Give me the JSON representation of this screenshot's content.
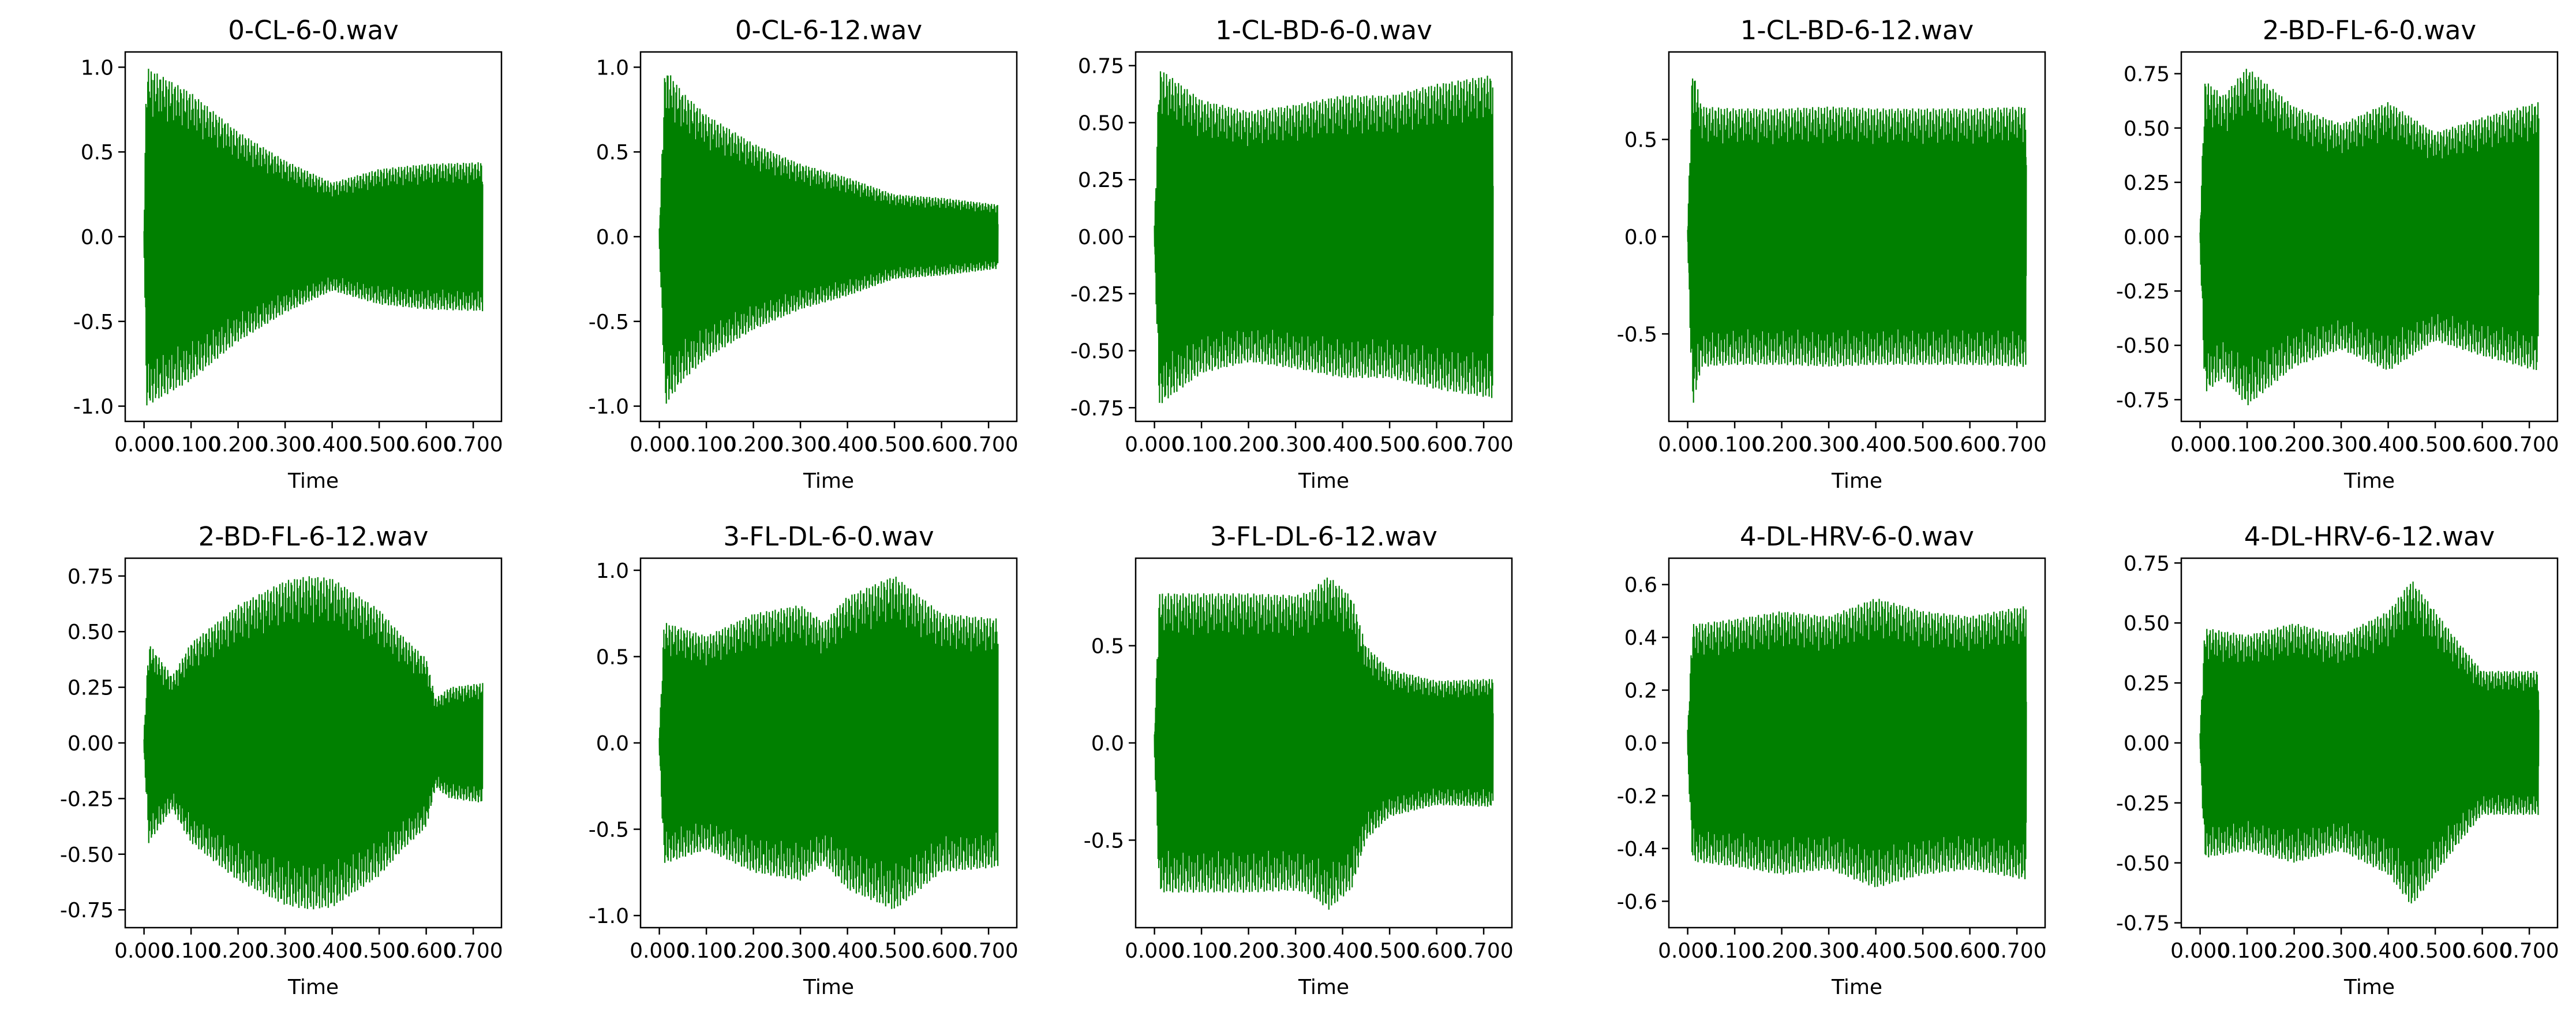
{
  "figure": {
    "colors": {
      "waveform": "#008000",
      "axes": "#000000",
      "background": "#ffffff"
    }
  },
  "chart_data": [
    {
      "type": "line",
      "title": "0-CL-6-0.wav",
      "xlabel": "Time",
      "ylabel": "",
      "xlim": [
        -0.04,
        0.76
      ],
      "ylim": [
        -1.09,
        1.09
      ],
      "xticks": [
        "0.000",
        "0.100",
        "0.200",
        "0.300",
        "0.400",
        "0.500",
        "0.600",
        "0.700"
      ],
      "yticks": [
        "-1.0",
        "-0.5",
        "0.0",
        "0.5",
        "1.0"
      ],
      "grid": false,
      "series": [
        {
          "envelope_t": [
            0.0,
            0.005,
            0.1,
            0.2,
            0.3,
            0.4,
            0.5,
            0.6,
            0.72
          ],
          "envelope_a": [
            0.05,
            1.0,
            0.85,
            0.62,
            0.45,
            0.32,
            0.4,
            0.43,
            0.44
          ]
        }
      ]
    },
    {
      "type": "line",
      "title": "0-CL-6-12.wav",
      "xlabel": "Time",
      "ylabel": "",
      "xlim": [
        -0.04,
        0.76
      ],
      "ylim": [
        -1.09,
        1.09
      ],
      "xticks": [
        "0.000",
        "0.100",
        "0.200",
        "0.300",
        "0.400",
        "0.500",
        "0.600",
        "0.700"
      ],
      "yticks": [
        "-1.0",
        "-0.5",
        "0.0",
        "0.5",
        "1.0"
      ],
      "grid": false,
      "series": [
        {
          "envelope_t": [
            0.0,
            0.012,
            0.05,
            0.1,
            0.2,
            0.3,
            0.4,
            0.5,
            0.6,
            0.72
          ],
          "envelope_a": [
            0.05,
            1.0,
            0.85,
            0.72,
            0.55,
            0.43,
            0.35,
            0.25,
            0.23,
            0.19
          ]
        }
      ]
    },
    {
      "type": "line",
      "title": "1-CL-BD-6-0.wav",
      "xlabel": "Time",
      "ylabel": "",
      "xlim": [
        -0.04,
        0.76
      ],
      "ylim": [
        -0.81,
        0.81
      ],
      "xticks": [
        "0.000",
        "0.100",
        "0.200",
        "0.300",
        "0.400",
        "0.500",
        "0.600",
        "0.700"
      ],
      "yticks": [
        "-0.75",
        "-0.50",
        "-0.25",
        "0.00",
        "0.25",
        "0.50",
        "0.75"
      ],
      "grid": false,
      "series": [
        {
          "envelope_t": [
            0.0,
            0.01,
            0.1,
            0.2,
            0.3,
            0.4,
            0.5,
            0.6,
            0.72
          ],
          "envelope_a": [
            0.05,
            0.74,
            0.6,
            0.55,
            0.58,
            0.62,
            0.62,
            0.67,
            0.71
          ]
        }
      ]
    },
    {
      "type": "line",
      "title": "1-CL-BD-6-12.wav",
      "xlabel": "Time",
      "ylabel": "",
      "xlim": [
        -0.04,
        0.76
      ],
      "ylim": [
        -0.95,
        0.95
      ],
      "xticks": [
        "0.000",
        "0.100",
        "0.200",
        "0.300",
        "0.400",
        "0.500",
        "0.600",
        "0.700"
      ],
      "yticks": [
        "-0.5",
        "0.0",
        "0.5"
      ],
      "grid": false,
      "series": [
        {
          "envelope_t": [
            0.0,
            0.01,
            0.03,
            0.1,
            0.2,
            0.3,
            0.4,
            0.5,
            0.6,
            0.72
          ],
          "envelope_a": [
            0.05,
            0.88,
            0.67,
            0.66,
            0.66,
            0.67,
            0.66,
            0.66,
            0.66,
            0.67
          ]
        }
      ]
    },
    {
      "type": "line",
      "title": "2-BD-FL-6-0.wav",
      "xlabel": "Time",
      "ylabel": "",
      "xlim": [
        -0.04,
        0.76
      ],
      "ylim": [
        -0.85,
        0.85
      ],
      "xticks": [
        "0.000",
        "0.100",
        "0.200",
        "0.300",
        "0.400",
        "0.500",
        "0.600",
        "0.700"
      ],
      "yticks": [
        "-0.75",
        "-0.50",
        "-0.25",
        "0.00",
        "0.25",
        "0.50",
        "0.75"
      ],
      "grid": false,
      "series": [
        {
          "envelope_t": [
            0.0,
            0.01,
            0.05,
            0.1,
            0.2,
            0.3,
            0.4,
            0.5,
            0.6,
            0.72
          ],
          "envelope_a": [
            0.05,
            0.72,
            0.65,
            0.78,
            0.6,
            0.52,
            0.62,
            0.48,
            0.55,
            0.62
          ]
        }
      ]
    },
    {
      "type": "line",
      "title": "2-BD-FL-6-12.wav",
      "xlabel": "Time",
      "ylabel": "",
      "xlim": [
        -0.04,
        0.76
      ],
      "ylim": [
        -0.83,
        0.83
      ],
      "xticks": [
        "0.000",
        "0.100",
        "0.200",
        "0.300",
        "0.400",
        "0.500",
        "0.600",
        "0.700"
      ],
      "yticks": [
        "-0.75",
        "-0.50",
        "-0.25",
        "0.00",
        "0.25",
        "0.50",
        "0.75"
      ],
      "grid": false,
      "series": [
        {
          "envelope_t": [
            0.0,
            0.01,
            0.06,
            0.1,
            0.2,
            0.3,
            0.35,
            0.4,
            0.5,
            0.55,
            0.6,
            0.62,
            0.65,
            0.72
          ],
          "envelope_a": [
            0.05,
            0.45,
            0.3,
            0.45,
            0.62,
            0.73,
            0.75,
            0.74,
            0.6,
            0.48,
            0.38,
            0.2,
            0.25,
            0.27
          ]
        }
      ]
    },
    {
      "type": "line",
      "title": "3-FL-DL-6-0.wav",
      "xlabel": "Time",
      "ylabel": "",
      "xlim": [
        -0.04,
        0.76
      ],
      "ylim": [
        -1.07,
        1.07
      ],
      "xticks": [
        "0.000",
        "0.100",
        "0.200",
        "0.300",
        "0.400",
        "0.500",
        "0.600",
        "0.700"
      ],
      "yticks": [
        "-1.0",
        "-0.5",
        "0.0",
        "0.5",
        "1.0"
      ],
      "grid": false,
      "series": [
        {
          "envelope_t": [
            0.0,
            0.01,
            0.1,
            0.2,
            0.3,
            0.35,
            0.4,
            0.5,
            0.6,
            0.72
          ],
          "envelope_a": [
            0.05,
            0.7,
            0.62,
            0.75,
            0.8,
            0.7,
            0.85,
            0.97,
            0.75,
            0.72
          ]
        }
      ]
    },
    {
      "type": "line",
      "title": "3-FL-DL-6-12.wav",
      "xlabel": "Time",
      "ylabel": "",
      "xlim": [
        -0.04,
        0.76
      ],
      "ylim": [
        -0.95,
        0.95
      ],
      "xticks": [
        "0.000",
        "0.100",
        "0.200",
        "0.300",
        "0.400",
        "0.500",
        "0.600",
        "0.700"
      ],
      "yticks": [
        "-0.5",
        "0.0",
        "0.5"
      ],
      "grid": false,
      "series": [
        {
          "envelope_t": [
            0.0,
            0.01,
            0.1,
            0.2,
            0.3,
            0.33,
            0.37,
            0.42,
            0.45,
            0.5,
            0.6,
            0.72
          ],
          "envelope_a": [
            0.05,
            0.77,
            0.77,
            0.77,
            0.76,
            0.78,
            0.86,
            0.75,
            0.5,
            0.38,
            0.32,
            0.33
          ]
        }
      ]
    },
    {
      "type": "line",
      "title": "4-DL-HRV-6-0.wav",
      "xlabel": "Time",
      "ylabel": "",
      "xlim": [
        -0.04,
        0.76
      ],
      "ylim": [
        -0.7,
        0.7
      ],
      "xticks": [
        "0.000",
        "0.100",
        "0.200",
        "0.300",
        "0.400",
        "0.500",
        "0.600",
        "0.700"
      ],
      "yticks": [
        "-0.6",
        "-0.4",
        "-0.2",
        "0.0",
        "0.2",
        "0.4",
        "0.6"
      ],
      "grid": false,
      "series": [
        {
          "envelope_t": [
            0.0,
            0.01,
            0.1,
            0.2,
            0.3,
            0.4,
            0.5,
            0.6,
            0.72
          ],
          "envelope_a": [
            0.05,
            0.45,
            0.47,
            0.5,
            0.48,
            0.55,
            0.5,
            0.48,
            0.52
          ]
        }
      ]
    },
    {
      "type": "line",
      "title": "4-DL-HRV-6-12.wav",
      "xlabel": "Time",
      "ylabel": "",
      "xlim": [
        -0.04,
        0.76
      ],
      "ylim": [
        -0.77,
        0.77
      ],
      "xticks": [
        "0.000",
        "0.100",
        "0.200",
        "0.300",
        "0.400",
        "0.500",
        "0.600",
        "0.700"
      ],
      "yticks": [
        "-0.75",
        "-0.50",
        "-0.25",
        "0.00",
        "0.25",
        "0.50",
        "0.75"
      ],
      "grid": false,
      "series": [
        {
          "envelope_t": [
            0.0,
            0.01,
            0.1,
            0.2,
            0.3,
            0.4,
            0.45,
            0.5,
            0.55,
            0.6,
            0.72
          ],
          "envelope_a": [
            0.05,
            0.48,
            0.45,
            0.5,
            0.45,
            0.55,
            0.68,
            0.55,
            0.42,
            0.3,
            0.3
          ]
        }
      ]
    }
  ]
}
